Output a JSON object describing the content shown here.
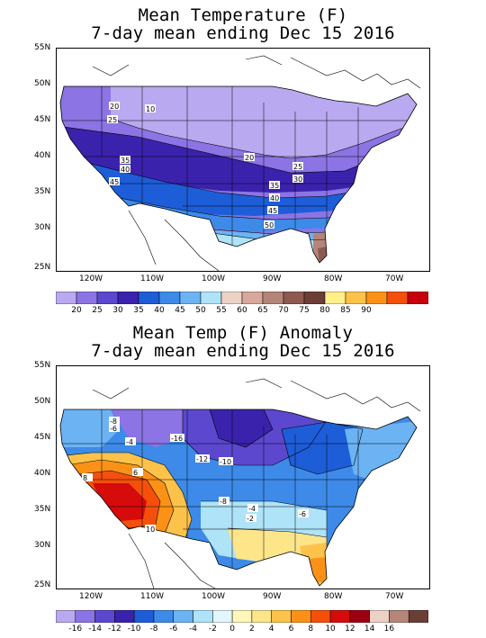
{
  "panel1": {
    "title_line1": "Mean Temperature (F)",
    "title_line2": "7-day mean ending Dec 15 2016",
    "lat_labels": [
      "55N",
      "50N",
      "45N",
      "40N",
      "35N",
      "30N",
      "25N"
    ],
    "lon_labels": [
      "120W",
      "110W",
      "100W",
      "90W",
      "80W",
      "70W"
    ],
    "contour_labels": [
      "10",
      "20",
      "25",
      "35",
      "40",
      "45",
      "20",
      "25",
      "30",
      "35",
      "40",
      "45",
      "50"
    ],
    "colorbar": {
      "colors": [
        "#b9a9f0",
        "#8c74e4",
        "#5b48cf",
        "#3a22ad",
        "#1e5dd8",
        "#3d8ae8",
        "#6cb3f3",
        "#aee3f8",
        "#ecd2c6",
        "#d7a89b",
        "#b5857a",
        "#8d5a52",
        "#6b3e36",
        "#fff08a",
        "#fdc24a",
        "#fb9217",
        "#f4500c",
        "#c8000b"
      ],
      "labels": [
        "20",
        "25",
        "30",
        "35",
        "40",
        "45",
        "50",
        "55",
        "60",
        "65",
        "70",
        "75",
        "80",
        "85",
        "90"
      ]
    }
  },
  "panel2": {
    "title_line1": "Mean Temp (F) Anomaly",
    "title_line2": "7-day mean ending Dec 15 2016",
    "lat_labels": [
      "55N",
      "50N",
      "45N",
      "40N",
      "35N",
      "30N",
      "25N"
    ],
    "lon_labels": [
      "120W",
      "110W",
      "100W",
      "90W",
      "80W",
      "70W"
    ],
    "contour_labels": [
      "-8",
      "-6",
      "-4",
      "-16",
      "-12",
      "-10",
      "8",
      "6",
      "10",
      "-8",
      "-4",
      "-2",
      "-6"
    ],
    "colorbar": {
      "colors": [
        "#b9a9f0",
        "#8c74e4",
        "#5b48cf",
        "#3a22ad",
        "#1e5dd8",
        "#3d8ae8",
        "#6cb3f3",
        "#aee3f8",
        "#e2f7fd",
        "#fff6b8",
        "#fde58a",
        "#fdc24a",
        "#fb9217",
        "#f4500c",
        "#d60b0b",
        "#9c0010",
        "#ecd2c6",
        "#b5857a",
        "#6b3e36"
      ],
      "labels": [
        "-16",
        "-14",
        "-12",
        "-10",
        "-8",
        "-6",
        "-4",
        "-2",
        "0",
        "2",
        "4",
        "6",
        "8",
        "10",
        "12",
        "14",
        "16"
      ]
    }
  }
}
